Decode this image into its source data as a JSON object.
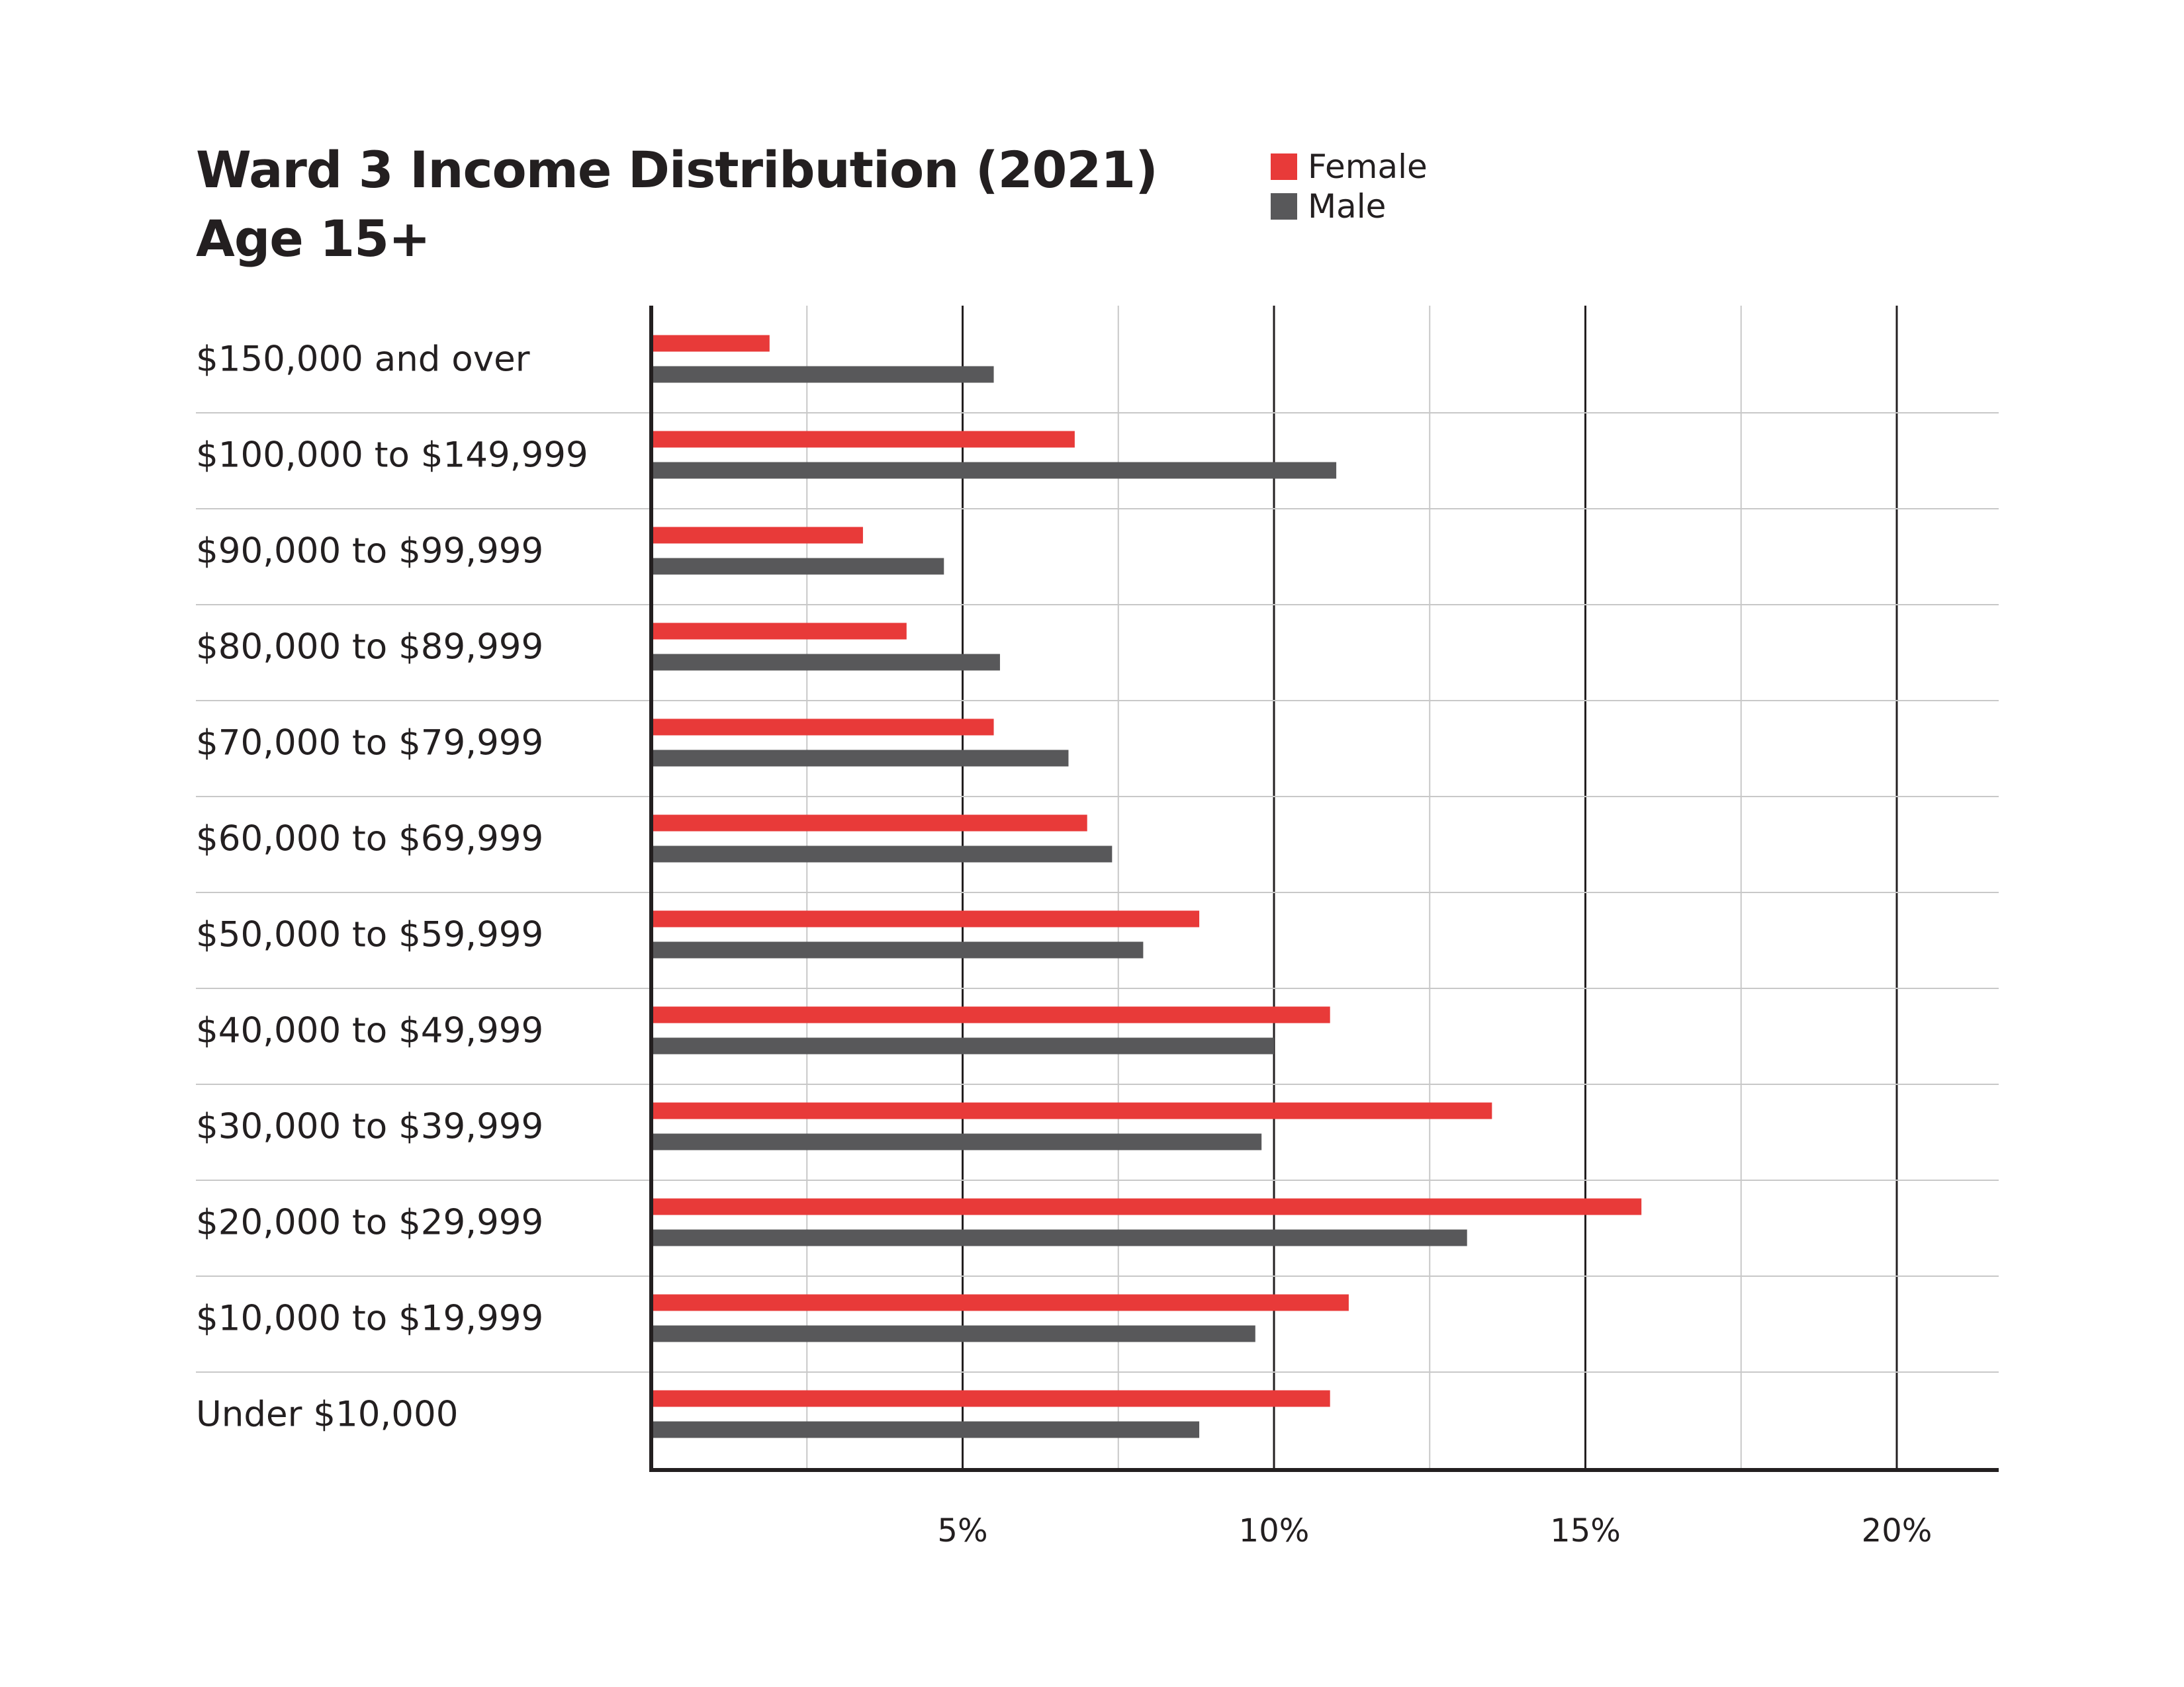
{
  "colors": {
    "female": "#e83a39",
    "male": "#58585a",
    "axis": "#231f20",
    "grid_major": "#231f20",
    "grid_minor": "#c8c8c8",
    "row_divider": "#c8c8c8"
  },
  "chart_data": {
    "type": "bar",
    "orientation": "horizontal",
    "title": [
      "Ward 3 Income Distribution (2021)",
      "Age 15+"
    ],
    "categories": [
      "$150,000 and over",
      "$100,000 to $149,999",
      "$90,000 to $99,999",
      "$80,000 to $89,999",
      "$70,000 to $79,999",
      "$60,000 to $69,999",
      "$50,000 to $59,999",
      "$40,000 to $49,999",
      "$30,000 to $39,999",
      "$20,000 to $29,999",
      "$10,000 to $19,999",
      "Under $10,000"
    ],
    "series": [
      {
        "name": "Female",
        "color": "#e83a39",
        "values": [
          1.9,
          6.8,
          3.4,
          4.1,
          5.5,
          7.0,
          8.8,
          10.9,
          13.5,
          15.9,
          11.2,
          10.9
        ]
      },
      {
        "name": "Male",
        "color": "#58585a",
        "values": [
          5.5,
          11.0,
          4.7,
          5.6,
          6.7,
          7.4,
          7.9,
          10.0,
          9.8,
          13.1,
          9.7,
          8.8
        ]
      }
    ],
    "xlim": [
      0,
      21.7
    ],
    "xticks": [
      5,
      10,
      15,
      20
    ],
    "xtick_labels": [
      "5%",
      "10%",
      "15%",
      "20%"
    ],
    "minor_gridlines": [
      2.5,
      7.5,
      12.5,
      17.5
    ],
    "grid": true,
    "legend": "top-center"
  }
}
